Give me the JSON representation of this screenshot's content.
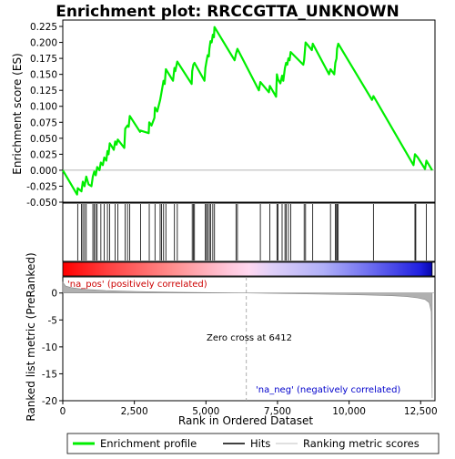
{
  "chart_data": {
    "type": "line",
    "title": "Enrichment plot: RRCCGTTA_UNKNOWN",
    "xlabel": "Rank in Ordered Dataset",
    "ylabel_top": "Enrichment score (ES)",
    "ylabel_bottom": "Ranked list metric (PreRanked)",
    "x_range": [
      0,
      13000
    ],
    "x_ticks": [
      0,
      2500,
      5000,
      7500,
      10000,
      12500
    ],
    "x_tick_labels": [
      "0",
      "2,500",
      "5,000",
      "7,500",
      "10,000",
      "12,500"
    ],
    "es_ylim": [
      -0.05,
      0.235
    ],
    "es_ticks": [
      -0.05,
      -0.025,
      0.0,
      0.025,
      0.05,
      0.075,
      0.1,
      0.125,
      0.15,
      0.175,
      0.2,
      0.225
    ],
    "es_tick_labels": [
      "-0.050",
      "-0.025",
      "0.000",
      "0.025",
      "0.050",
      "0.075",
      "0.100",
      "0.125",
      "0.150",
      "0.175",
      "0.200",
      "0.225"
    ],
    "metric_ylim": [
      -20,
      3
    ],
    "metric_ticks": [
      0,
      -5,
      -10,
      -15,
      -20
    ],
    "metric_tick_labels": [
      "0",
      "-5",
      "-10",
      "-15",
      "-20"
    ],
    "zero_cross": 6412,
    "zero_cross_label": "Zero cross at 6412",
    "pos_label": "'na_pos' (positively correlated)",
    "neg_label": "'na_neg' (negatively correlated)",
    "enrichment_profile": [
      [
        0,
        0
      ],
      [
        500,
        -0.038
      ],
      [
        520,
        -0.028
      ],
      [
        650,
        -0.033
      ],
      [
        700,
        -0.018
      ],
      [
        760,
        -0.025
      ],
      [
        820,
        -0.01
      ],
      [
        900,
        -0.022
      ],
      [
        1000,
        -0.025
      ],
      [
        1050,
        -0.01
      ],
      [
        1100,
        -0.002
      ],
      [
        1150,
        -0.008
      ],
      [
        1200,
        0.005
      ],
      [
        1280,
        0.0
      ],
      [
        1330,
        0.012
      ],
      [
        1400,
        0.008
      ],
      [
        1450,
        0.02
      ],
      [
        1520,
        0.015
      ],
      [
        1560,
        0.03
      ],
      [
        1600,
        0.025
      ],
      [
        1640,
        0.042
      ],
      [
        1700,
        0.038
      ],
      [
        1780,
        0.032
      ],
      [
        1830,
        0.045
      ],
      [
        1880,
        0.04
      ],
      [
        1920,
        0.048
      ],
      [
        2150,
        0.035
      ],
      [
        2180,
        0.065
      ],
      [
        2260,
        0.07
      ],
      [
        2300,
        0.068
      ],
      [
        2340,
        0.085
      ],
      [
        2700,
        0.06
      ],
      [
        2720,
        0.062
      ],
      [
        3000,
        0.058
      ],
      [
        3020,
        0.075
      ],
      [
        3100,
        0.07
      ],
      [
        3200,
        0.082
      ],
      [
        3220,
        0.098
      ],
      [
        3300,
        0.092
      ],
      [
        3400,
        0.11
      ],
      [
        3450,
        0.122
      ],
      [
        3520,
        0.14
      ],
      [
        3560,
        0.135
      ],
      [
        3600,
        0.158
      ],
      [
        3850,
        0.14
      ],
      [
        3900,
        0.16
      ],
      [
        3930,
        0.155
      ],
      [
        4000,
        0.17
      ],
      [
        4500,
        0.135
      ],
      [
        4520,
        0.155
      ],
      [
        4560,
        0.165
      ],
      [
        4600,
        0.168
      ],
      [
        4950,
        0.14
      ],
      [
        4980,
        0.16
      ],
      [
        5020,
        0.17
      ],
      [
        5060,
        0.18
      ],
      [
        5100,
        0.178
      ],
      [
        5120,
        0.19
      ],
      [
        5160,
        0.202
      ],
      [
        5200,
        0.2
      ],
      [
        5240,
        0.212
      ],
      [
        5280,
        0.208
      ],
      [
        5300,
        0.224
      ],
      [
        6000,
        0.172
      ],
      [
        6050,
        0.182
      ],
      [
        6100,
        0.19
      ],
      [
        6850,
        0.125
      ],
      [
        6900,
        0.138
      ],
      [
        7200,
        0.122
      ],
      [
        7230,
        0.132
      ],
      [
        7450,
        0.115
      ],
      [
        7480,
        0.15
      ],
      [
        7520,
        0.142
      ],
      [
        7600,
        0.136
      ],
      [
        7660,
        0.148
      ],
      [
        7700,
        0.14
      ],
      [
        7760,
        0.16
      ],
      [
        7800,
        0.168
      ],
      [
        7840,
        0.165
      ],
      [
        7880,
        0.175
      ],
      [
        7920,
        0.172
      ],
      [
        7960,
        0.185
      ],
      [
        8400,
        0.165
      ],
      [
        8430,
        0.172
      ],
      [
        8480,
        0.2
      ],
      [
        8700,
        0.188
      ],
      [
        8730,
        0.198
      ],
      [
        9300,
        0.15
      ],
      [
        9350,
        0.158
      ],
      [
        9480,
        0.15
      ],
      [
        9520,
        0.168
      ],
      [
        9560,
        0.175
      ],
      [
        9580,
        0.19
      ],
      [
        9620,
        0.198
      ],
      [
        10800,
        0.11
      ],
      [
        10850,
        0.116
      ],
      [
        12250,
        0.008
      ],
      [
        12300,
        0.025
      ],
      [
        12400,
        0.02
      ],
      [
        12650,
        0.002
      ],
      [
        12700,
        0.015
      ],
      [
        12900,
        0.0
      ]
    ],
    "hits": [
      520,
      650,
      700,
      760,
      820,
      1050,
      1100,
      1150,
      1200,
      1330,
      1450,
      1560,
      1640,
      1830,
      1920,
      2180,
      2260,
      2340,
      2720,
      3020,
      3220,
      3400,
      3450,
      3520,
      3600,
      3900,
      4000,
      4520,
      4560,
      4600,
      4980,
      5020,
      5060,
      5120,
      5160,
      5240,
      5300,
      6050,
      6100,
      6900,
      7230,
      7480,
      7520,
      7660,
      7760,
      7800,
      7880,
      7960,
      8430,
      8480,
      8730,
      9350,
      9520,
      9560,
      9580,
      9620,
      10850,
      12300,
      12330,
      12700
    ],
    "metric_curve": [
      [
        0,
        2.0
      ],
      [
        100,
        1.3
      ],
      [
        300,
        1.0
      ],
      [
        700,
        0.7
      ],
      [
        1500,
        0.45
      ],
      [
        2500,
        0.3
      ],
      [
        4000,
        0.15
      ],
      [
        5500,
        0.05
      ],
      [
        6412,
        0.0
      ],
      [
        7500,
        -0.08
      ],
      [
        9000,
        -0.2
      ],
      [
        10500,
        -0.35
      ],
      [
        11500,
        -0.5
      ],
      [
        12000,
        -0.65
      ],
      [
        12400,
        -0.9
      ],
      [
        12650,
        -1.2
      ],
      [
        12800,
        -1.8
      ],
      [
        12870,
        -3.5
      ],
      [
        12900,
        -19.5
      ]
    ],
    "legend": {
      "entries": [
        {
          "label": "Enrichment profile",
          "color": "#00ee00"
        },
        {
          "label": "Hits",
          "color": "#000000"
        },
        {
          "label": "Ranking metric scores",
          "color": "#c0c0c0"
        }
      ]
    },
    "colors": {
      "profile": "#00ee00",
      "hits": "#000000",
      "metric": "#999999",
      "pos_text": "#cc0000",
      "neg_text": "#0000cc"
    }
  }
}
